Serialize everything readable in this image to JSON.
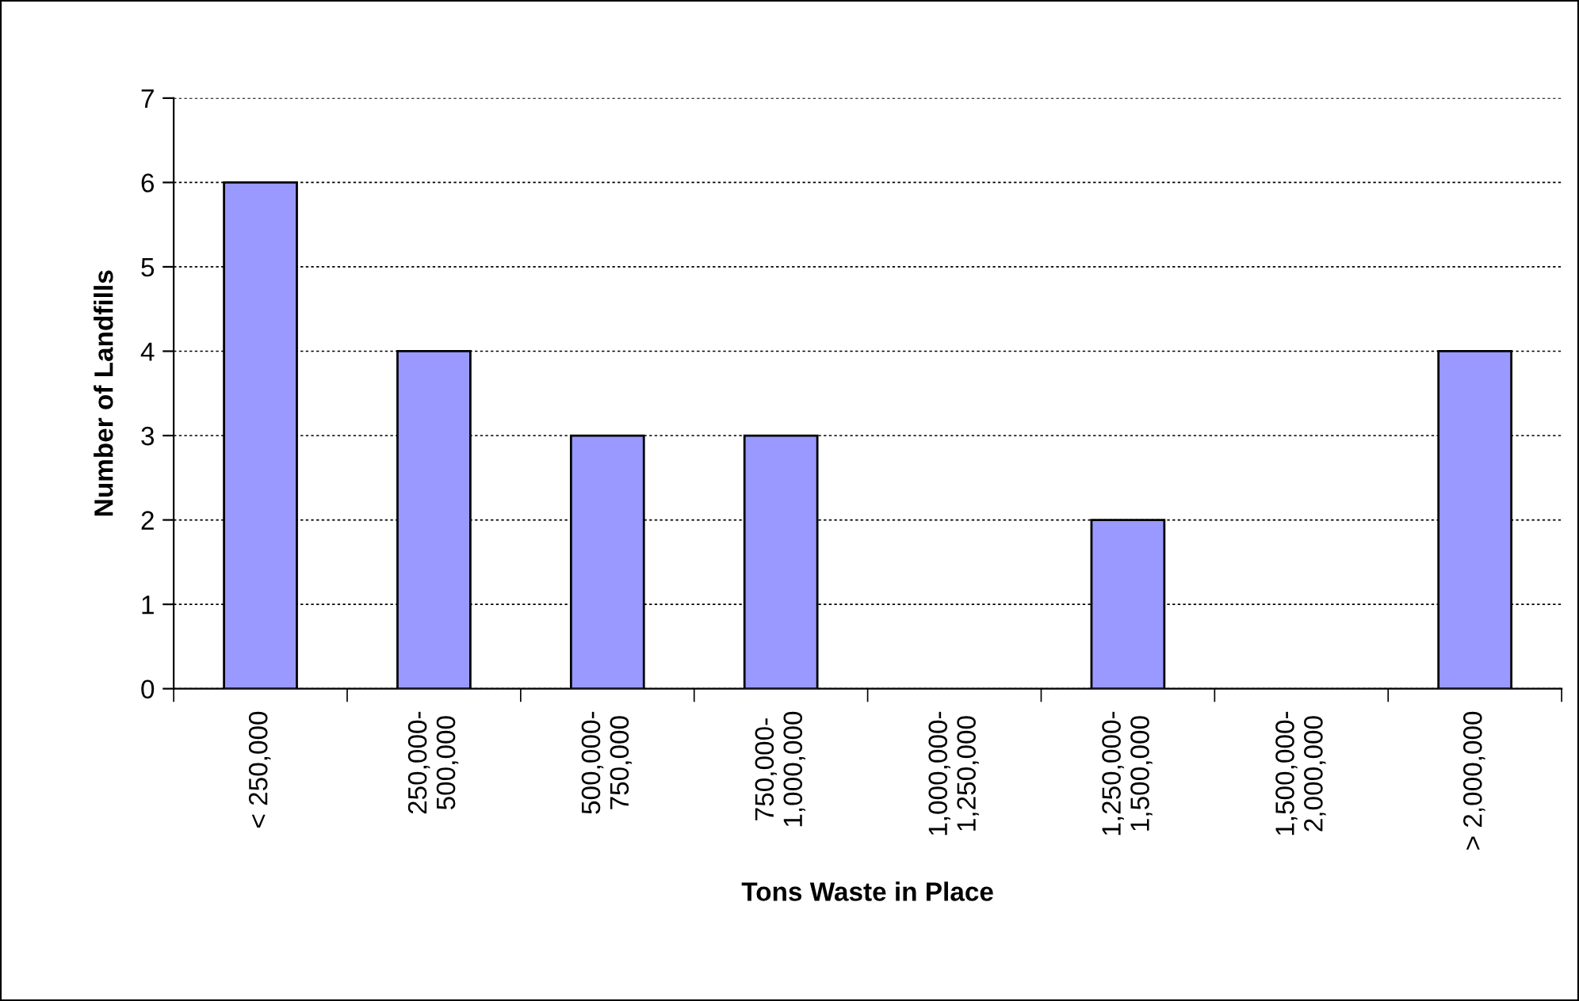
{
  "chart_data": {
    "type": "bar",
    "xlabel": "Tons Waste in Place",
    "ylabel": "Number of Landfills",
    "categories": [
      "< 250,000",
      "250,000-\n500,000",
      "500,000-\n750,000",
      "750,000-\n1,000,000",
      "1,000,000-\n1,250,000",
      "1,250,000-\n1,500,000",
      "1,500,000-\n2,000,000",
      "> 2,000,000"
    ],
    "values": [
      6,
      4,
      3,
      3,
      0,
      2,
      0,
      4
    ],
    "color": "#9999ff",
    "ylim": [
      0,
      7
    ],
    "yticks": [
      0,
      1,
      2,
      3,
      4,
      5,
      6,
      7
    ],
    "grid": "y",
    "legend": false
  }
}
